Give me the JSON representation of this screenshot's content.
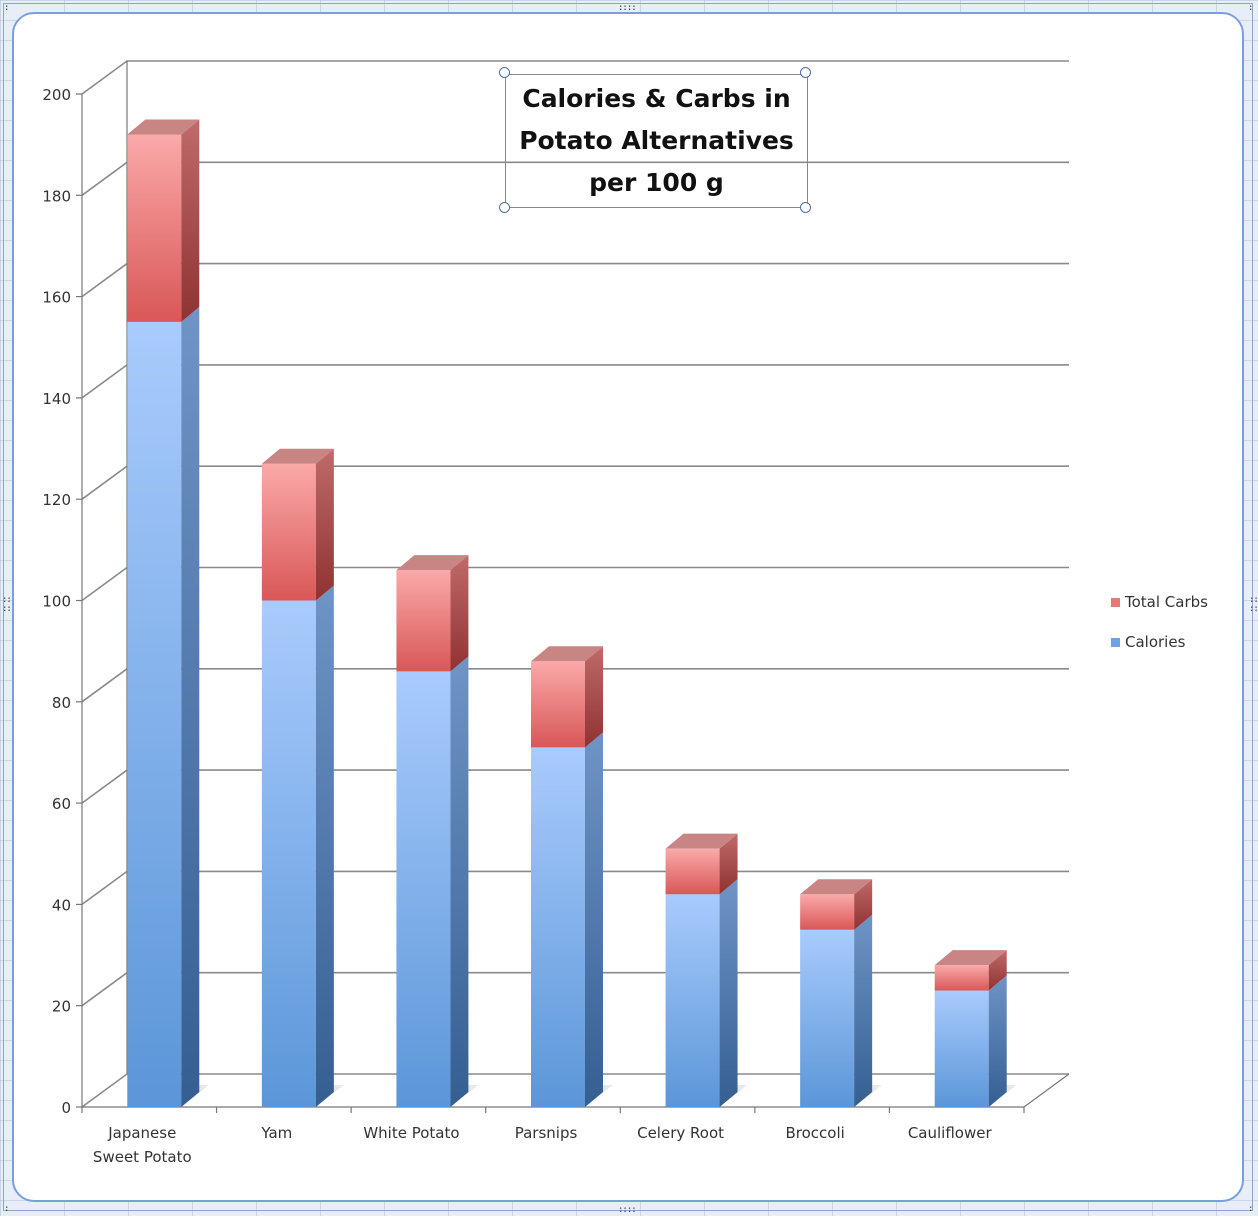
{
  "chart_data": {
    "type": "bar",
    "stacked": true,
    "three_d": true,
    "title": "Calories & Carbs in Potato Alternatives per 100 g",
    "title_lines": [
      "Calories & Carbs in",
      "Potato Alternatives",
      "per 100 g"
    ],
    "categories": [
      "Japanese Sweet Potato",
      "Yam",
      "White Potato",
      "Parsnips",
      "Celery Root",
      "Broccoli",
      "Cauliflower"
    ],
    "category_label_lines": [
      [
        "Japanese",
        "Sweet Potato"
      ],
      [
        "Yam"
      ],
      [
        "White Potato"
      ],
      [
        "Parsnips"
      ],
      [
        "Celery Root"
      ],
      [
        "Broccoli"
      ],
      [
        "Cauliflower"
      ]
    ],
    "series": [
      {
        "name": "Calories",
        "color": "#6fa3e3",
        "values": [
          155,
          100,
          86,
          71,
          42,
          35,
          23
        ]
      },
      {
        "name": "Total Carbs",
        "color": "#e87878",
        "values": [
          37,
          27,
          20,
          17,
          9,
          7,
          5
        ]
      }
    ],
    "ylim": [
      0,
      200
    ],
    "yticks": [
      0,
      20,
      40,
      60,
      80,
      100,
      120,
      140,
      160,
      180,
      200
    ],
    "grid": true,
    "legend_position": "right",
    "legend_order": [
      "Total Carbs",
      "Calories"
    ],
    "xlabel": "",
    "ylabel": ""
  },
  "colors": {
    "frame_border": "#7a9fdc",
    "gridline": "#8a8a8a",
    "calories_light": "#a9cbfd",
    "calories_dark": "#5b96d8",
    "calories_side": "#3f6c9c",
    "carbs_light": "#fba9a9",
    "carbs_dark": "#d95757",
    "carbs_side": "#a84040"
  }
}
